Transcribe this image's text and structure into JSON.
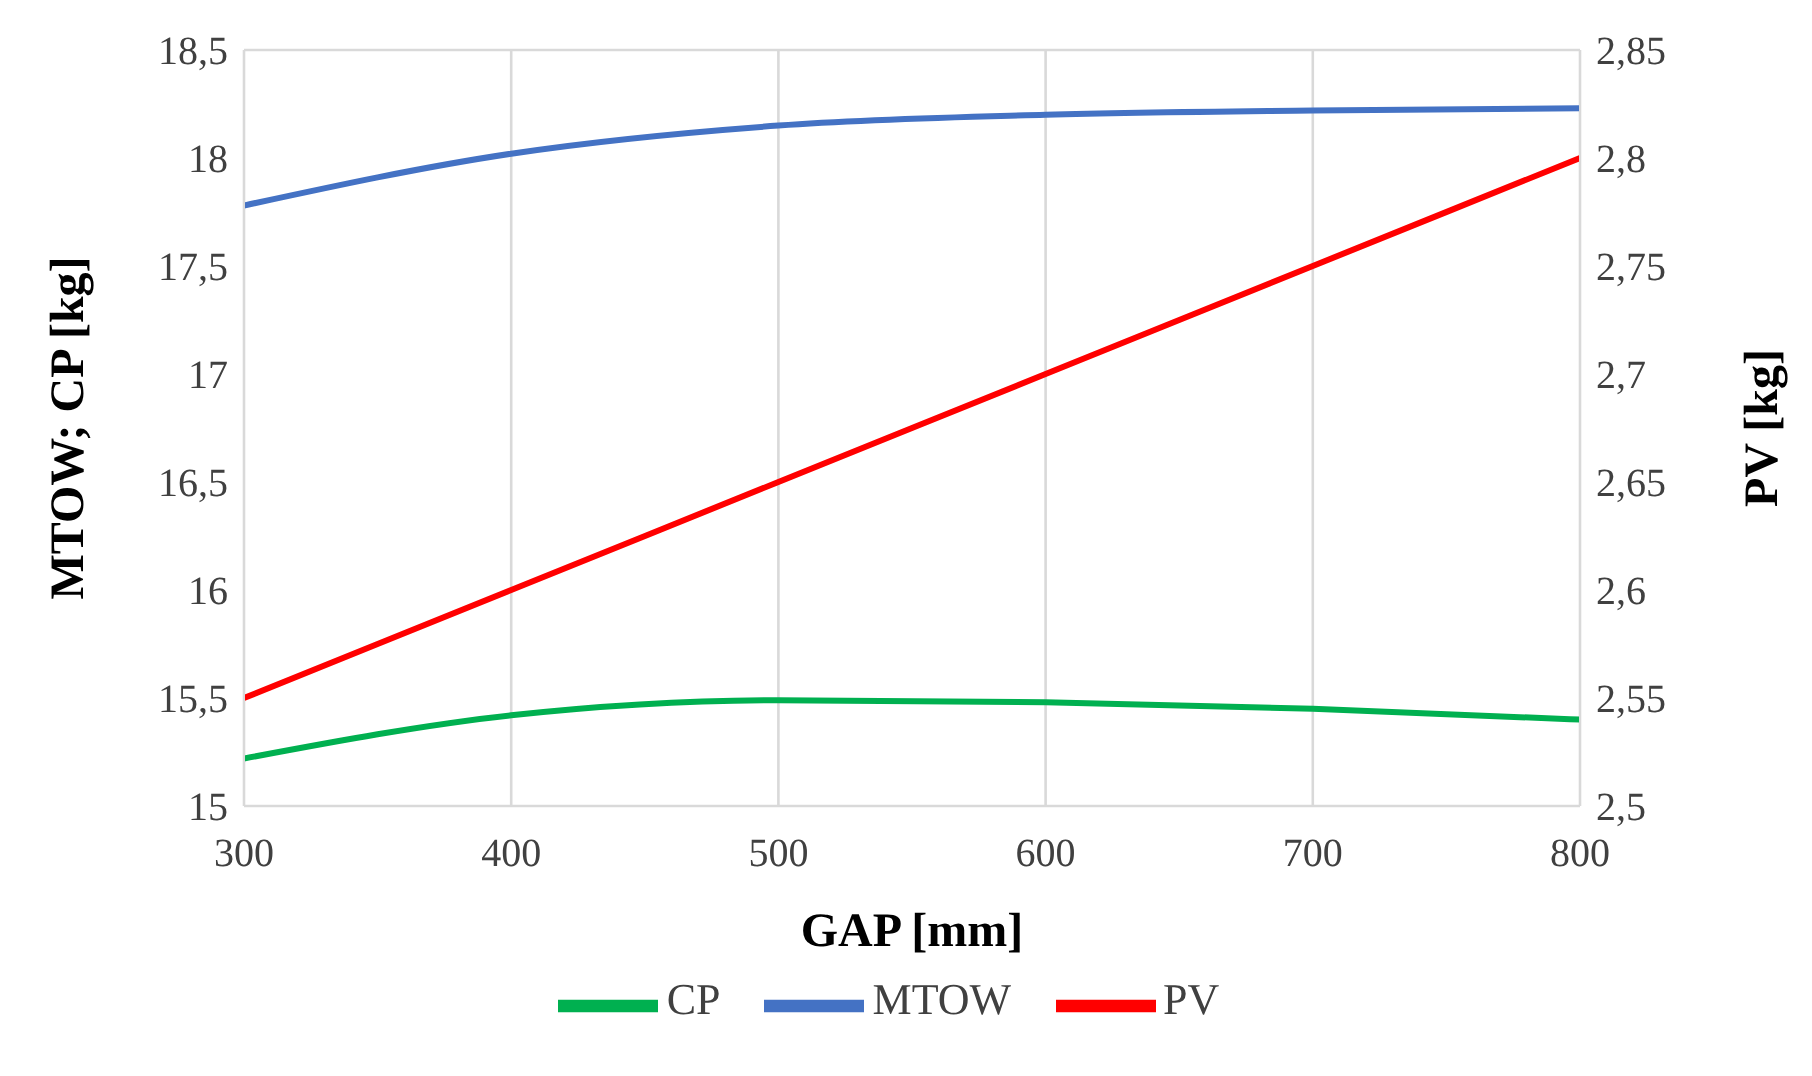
{
  "chart_data": {
    "type": "line",
    "xlabel": "GAP [mm]",
    "ylabel": "MTOW; CP [kg]",
    "y2label": "PV [kg]",
    "x": [
      300,
      400,
      500,
      600,
      700,
      800
    ],
    "series": [
      {
        "name": "MTOW",
        "color": "#4472c4",
        "values": [
          17.78,
          18.02,
          18.15,
          18.2,
          18.22,
          18.23
        ]
      },
      {
        "name": "CP",
        "color": "#00b050",
        "values": [
          15.22,
          15.42,
          15.49,
          15.48,
          15.45,
          15.4
        ]
      },
      {
        "name": "PV",
        "color": "#ff0000",
        "axis": "y2",
        "values": [
          2.55,
          2.6,
          2.65,
          2.7,
          2.75,
          2.8
        ]
      }
    ],
    "xlim": [
      300,
      800
    ],
    "xticks": [
      300,
      400,
      500,
      600,
      700,
      800
    ],
    "ylim": [
      15,
      18.5
    ],
    "yticks": [
      15,
      {
        "value": 15.5,
        "label": "15,5"
      },
      16,
      {
        "value": 16.5,
        "label": "16,5"
      },
      17,
      {
        "value": 17.5,
        "label": "17,5"
      },
      18,
      {
        "value": 18.5,
        "label": "18,5"
      }
    ],
    "y2lim": [
      2.5,
      2.85
    ],
    "y2ticks": [
      {
        "value": 2.5,
        "label": "2,5"
      },
      {
        "value": 2.55,
        "label": "2,55"
      },
      {
        "value": 2.6,
        "label": "2,6"
      },
      {
        "value": 2.65,
        "label": "2,65"
      },
      {
        "value": 2.7,
        "label": "2,7"
      },
      {
        "value": 2.75,
        "label": "2,75"
      },
      {
        "value": 2.8,
        "label": "2,8"
      },
      {
        "value": 2.85,
        "label": "2,85"
      }
    ],
    "grid": true,
    "legend": "bottom",
    "marker": "none",
    "line_style": "solid"
  }
}
